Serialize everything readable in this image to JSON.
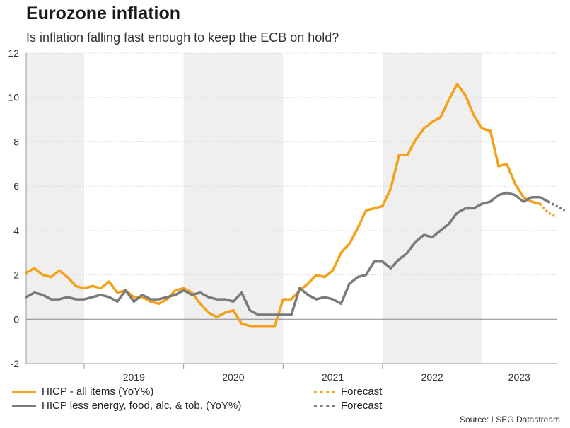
{
  "title": "Eurozone inflation",
  "subtitle": "Is inflation falling fast enough to keep the ECB on hold?",
  "source": "Source: LSEG Datastream",
  "colors": {
    "hicp": "#F5A01A",
    "core": "#7A7A7A",
    "shade": "#EFEFEF",
    "grid": "#DDDDDD"
  },
  "chart_data": {
    "type": "line",
    "title": "Eurozone inflation",
    "ylim": [
      -2,
      12
    ],
    "yticks": [
      -2,
      0,
      2,
      4,
      6,
      8,
      10,
      12
    ],
    "xlim": [
      2018.4167,
      2023.75
    ],
    "x_labels": [
      {
        "label": "2019",
        "x": 2019.5
      },
      {
        "label": "2020",
        "x": 2020.5
      },
      {
        "label": "2021",
        "x": 2021.5
      },
      {
        "label": "2022",
        "x": 2022.5
      },
      {
        "label": "2023",
        "x": 2023.375
      }
    ],
    "year_dividers": [
      2019,
      2020,
      2021,
      2022,
      2023
    ],
    "shaded_ranges": [
      [
        2018.4167,
        2019.0
      ],
      [
        2020.0,
        2021.0
      ],
      [
        2022.0,
        2023.0
      ]
    ],
    "series": [
      {
        "name": "HICP - all items (YoY%)",
        "start": 2018.4167,
        "values": [
          2.1,
          2.3,
          2.0,
          1.9,
          2.2,
          1.9,
          1.5,
          1.4,
          1.5,
          1.4,
          1.7,
          1.2,
          1.3,
          1.0,
          1.0,
          0.8,
          0.7,
          0.9,
          1.3,
          1.4,
          1.2,
          0.7,
          0.3,
          0.1,
          0.3,
          0.4,
          -0.2,
          -0.3,
          -0.3,
          -0.3,
          -0.3,
          0.9,
          0.9,
          1.3,
          1.6,
          2.0,
          1.9,
          2.2,
          3.0,
          3.4,
          4.1,
          4.9,
          5.0,
          5.1,
          5.9,
          7.4,
          7.4,
          8.1,
          8.6,
          8.9,
          9.1,
          9.9,
          10.6,
          10.1,
          9.2,
          8.6,
          8.5,
          6.9,
          7.0,
          6.1,
          5.5,
          5.3,
          5.2
        ],
        "forecast": {
          "name": "Forecast",
          "start": 2023.5833,
          "values": [
            5.2,
            4.8,
            4.6
          ]
        }
      },
      {
        "name": "HICP less energy, food, alc. & tob. (YoY%)",
        "start": 2018.4167,
        "values": [
          1.0,
          1.2,
          1.1,
          0.9,
          0.9,
          1.0,
          0.9,
          0.9,
          1.0,
          1.1,
          1.0,
          0.8,
          1.3,
          0.8,
          1.1,
          0.9,
          0.9,
          1.0,
          1.1,
          1.3,
          1.1,
          1.2,
          1.0,
          0.9,
          0.9,
          0.8,
          1.2,
          0.4,
          0.2,
          0.2,
          0.2,
          0.2,
          0.2,
          1.4,
          1.1,
          0.9,
          1.0,
          0.9,
          0.7,
          1.6,
          1.9,
          2.0,
          2.6,
          2.6,
          2.3,
          2.7,
          3.0,
          3.5,
          3.8,
          3.7,
          4.0,
          4.3,
          4.8,
          5.0,
          5.0,
          5.2,
          5.3,
          5.6,
          5.7,
          5.6,
          5.3,
          5.5,
          5.5,
          5.3
        ],
        "forecast": {
          "name": "Forecast",
          "start": 2023.6667,
          "values": [
            5.3,
            5.1,
            4.9
          ]
        }
      }
    ],
    "legend": [
      {
        "label": "HICP - all items (YoY%)",
        "style": "solid",
        "series": "hicp"
      },
      {
        "label": "HICP less energy, food, alc. & tob. (YoY%)",
        "style": "solid",
        "series": "core"
      },
      {
        "label": "Forecast",
        "style": "dotted",
        "series": "hicp"
      },
      {
        "label": "Forecast",
        "style": "dotted",
        "series": "core"
      }
    ]
  }
}
